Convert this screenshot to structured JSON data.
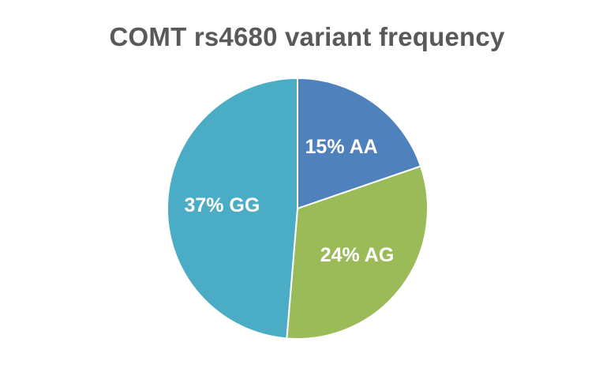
{
  "chart_data": {
    "type": "pie",
    "title": "COMT rs4680 variant frequency",
    "categories": [
      "AA",
      "AG",
      "GG"
    ],
    "values": [
      15,
      24,
      37
    ],
    "data_labels": [
      "15% AA",
      "24% AG",
      "37% GG"
    ],
    "colors": [
      "#4F81BD",
      "#9BBB59",
      "#4BACC6"
    ],
    "legend": "none",
    "start_angle_deg": 0,
    "direction": "clockwise"
  }
}
